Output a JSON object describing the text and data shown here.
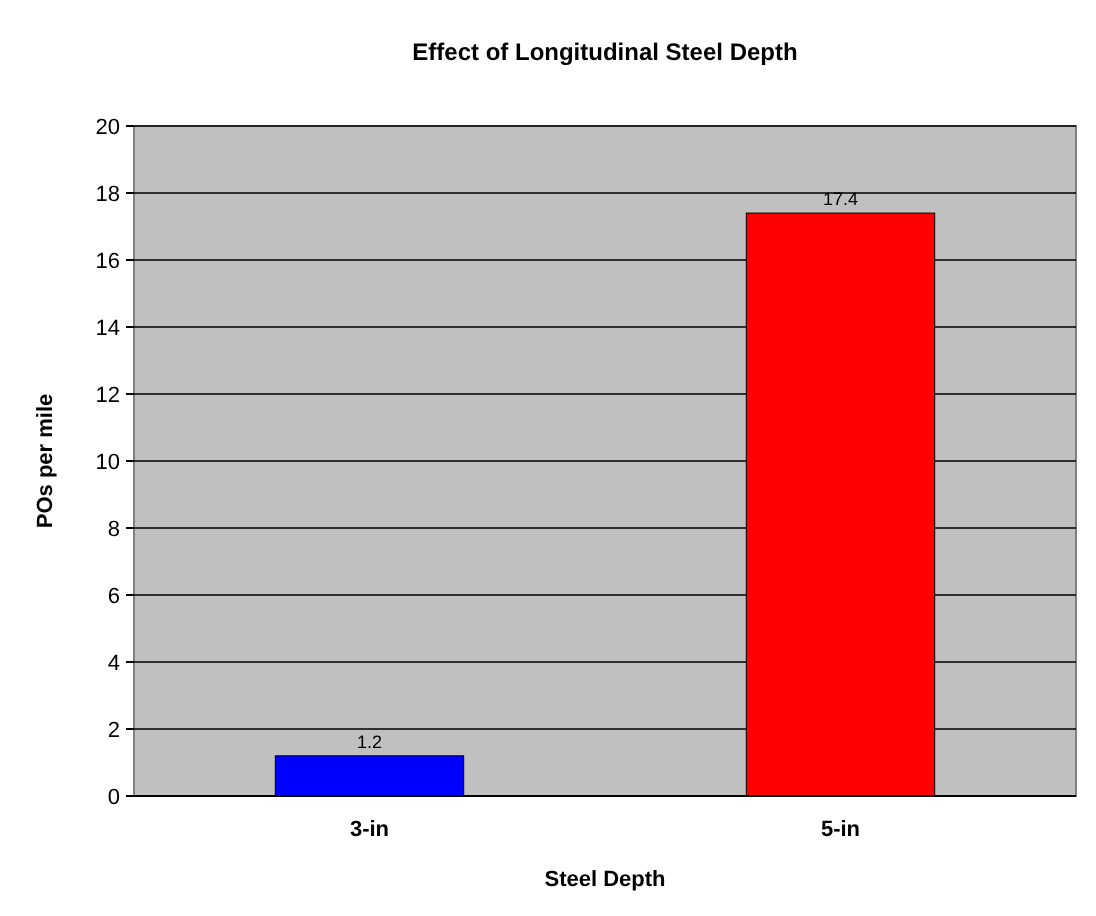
{
  "chart_data": {
    "type": "bar",
    "title": "Effect of Longitudinal Steel Depth",
    "xlabel": "Steel Depth",
    "ylabel": "POs per mile",
    "categories": [
      "3-in",
      "5-in"
    ],
    "values": [
      1.2,
      17.4
    ],
    "colors": [
      "#0000ff",
      "#ff0000"
    ],
    "ylim": [
      0,
      20
    ],
    "yticks": [
      0,
      2,
      4,
      6,
      8,
      10,
      12,
      14,
      16,
      18,
      20
    ],
    "grid": "y",
    "data_labels": true
  }
}
